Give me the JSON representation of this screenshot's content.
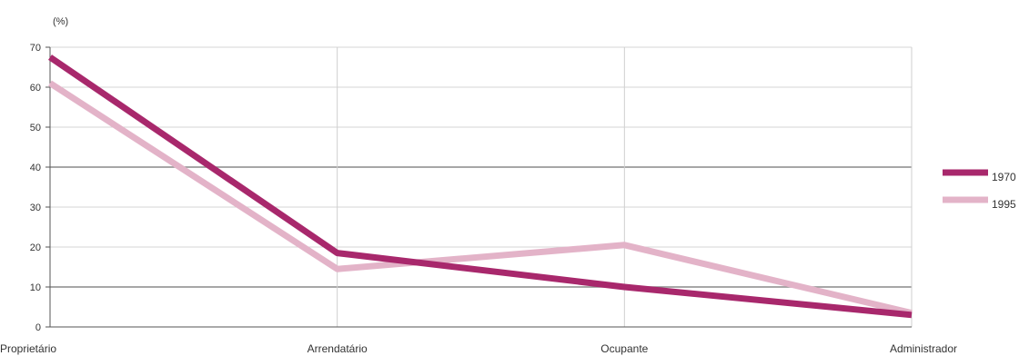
{
  "chart_data": {
    "type": "line",
    "unit_label": "(%)",
    "categories": [
      "Proprietário",
      "Arrendatário",
      "Ocupante",
      "Administrador"
    ],
    "ylim": [
      0,
      70
    ],
    "yticks": [
      0,
      10,
      20,
      30,
      40,
      50,
      60,
      70
    ],
    "grid": true,
    "legend_position": "right",
    "series": [
      {
        "name": "1970",
        "values": [
          67.5,
          18.5,
          10,
          3
        ],
        "color": "#a8286c"
      },
      {
        "name": "1995",
        "values": [
          61,
          14.5,
          20.5,
          3.5
        ],
        "color": "#e3b3c8"
      }
    ]
  }
}
